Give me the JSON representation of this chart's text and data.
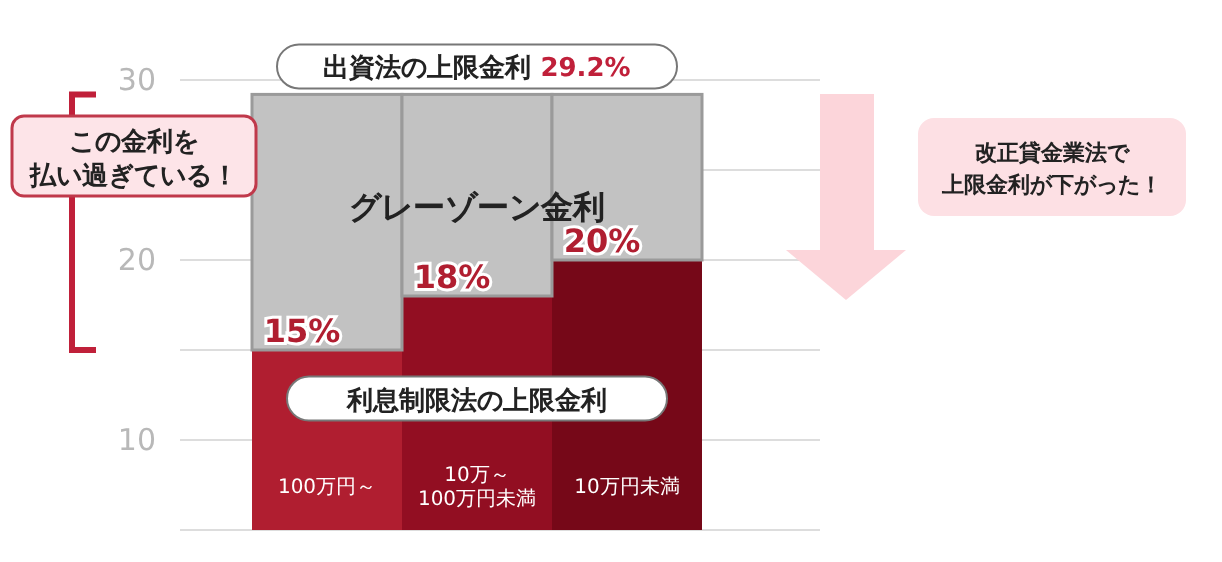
{
  "chart_data": {
    "type": "bar",
    "stacked": true,
    "categories": [
      "100万円～",
      "10万～\n100万円未満",
      "10万円未満"
    ],
    "series": [
      {
        "name": "利息制限法の上限金利",
        "colors": [
          "#b01e30",
          "#920e22",
          "#760818"
        ],
        "values": [
          15,
          18,
          20
        ],
        "value_labels": [
          "15%",
          "18%",
          "20%"
        ]
      },
      {
        "name": "グレーゾーン金利",
        "color": "#c2c2c2",
        "values": [
          14.2,
          11.2,
          9.2
        ]
      }
    ],
    "ylim": [
      5,
      30
    ],
    "yticks": [
      {
        "value": 5,
        "label": null
      },
      10,
      {
        "value": 15,
        "label": null
      },
      20,
      {
        "value": 25,
        "label": null
      },
      30
    ],
    "grid": "y",
    "annotations": [
      {
        "text": "出資法の上限金利 29.2%",
        "y": 29.2
      },
      "この金利を",
      "払い過ぎている！",
      "改正貸金業法で",
      "上限金利が下がった！"
    ]
  }
}
